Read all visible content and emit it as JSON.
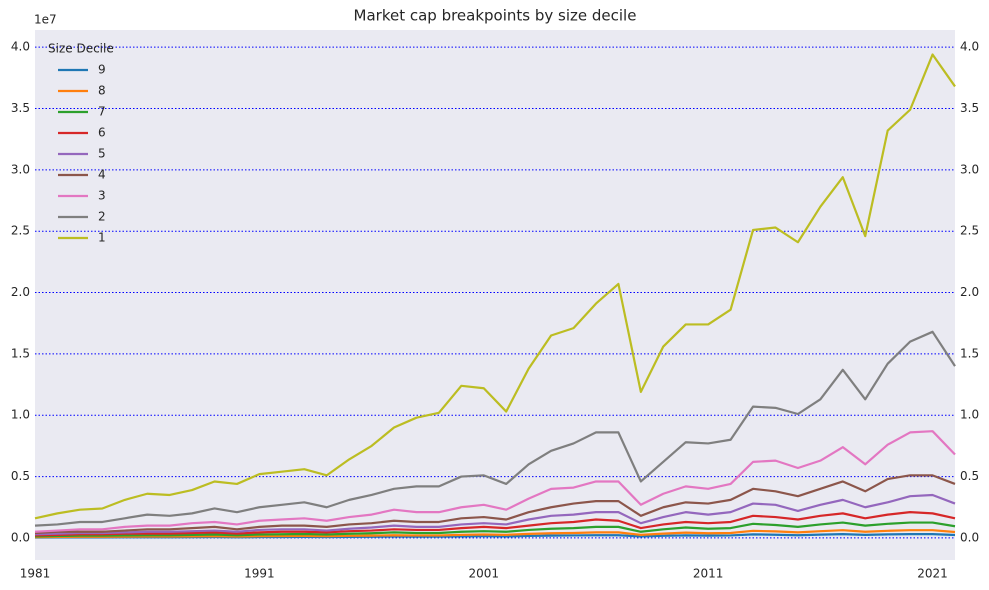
{
  "chart_data": {
    "type": "line",
    "title": "Market cap breakpoints by size decile",
    "offset_label": "1e7",
    "legend_title": "Size Decile",
    "legend_loc": "upper left",
    "grid": true,
    "xlim": [
      1981,
      2022
    ],
    "xticks": [
      1981,
      1991,
      2001,
      2011,
      2021
    ],
    "ylim": [
      -0.18,
      4.14
    ],
    "yticks": [
      {
        "value": 0,
        "label": "0.0"
      },
      {
        "value": 0.5,
        "label": "0.5"
      },
      {
        "value": 1,
        "label": "1.0"
      },
      {
        "value": 1.5,
        "label": "1.5"
      },
      {
        "value": 2,
        "label": "2.0"
      },
      {
        "value": 2.5,
        "label": "2.5"
      },
      {
        "value": 3,
        "label": "3.0"
      },
      {
        "value": 3.5,
        "label": "3.5"
      },
      {
        "value": 4,
        "label": "4.0"
      }
    ],
    "x": [
      1981,
      1982,
      1983,
      1984,
      1985,
      1986,
      1987,
      1988,
      1989,
      1990,
      1991,
      1992,
      1993,
      1994,
      1995,
      1996,
      1997,
      1998,
      1999,
      2000,
      2001,
      2002,
      2003,
      2004,
      2005,
      2006,
      2007,
      2008,
      2009,
      2010,
      2011,
      2012,
      2013,
      2014,
      2015,
      2016,
      2017,
      2018,
      2019,
      2020,
      2021,
      2022
    ],
    "series": [
      {
        "name": "9",
        "color": "#1f77b4",
        "values": [
          0.003,
          0.004,
          0.004,
          0.004,
          0.005,
          0.005,
          0.005,
          0.006,
          0.007,
          0.005,
          0.007,
          0.007,
          0.008,
          0.007,
          0.008,
          0.009,
          0.011,
          0.01,
          0.01,
          0.012,
          0.014,
          0.012,
          0.016,
          0.019,
          0.02,
          0.022,
          0.022,
          0.012,
          0.017,
          0.021,
          0.019,
          0.02,
          0.029,
          0.026,
          0.022,
          0.027,
          0.031,
          0.025,
          0.029,
          0.031,
          0.031,
          0.024
        ]
      },
      {
        "name": "8",
        "color": "#ff7f0e",
        "values": [
          0.006,
          0.008,
          0.009,
          0.009,
          0.01,
          0.011,
          0.011,
          0.012,
          0.014,
          0.011,
          0.014,
          0.015,
          0.016,
          0.014,
          0.017,
          0.019,
          0.022,
          0.02,
          0.02,
          0.025,
          0.028,
          0.025,
          0.033,
          0.038,
          0.04,
          0.045,
          0.045,
          0.025,
          0.035,
          0.043,
          0.038,
          0.04,
          0.058,
          0.053,
          0.045,
          0.055,
          0.063,
          0.05,
          0.058,
          0.063,
          0.063,
          0.048
        ]
      },
      {
        "name": "7",
        "color": "#2ca02c",
        "values": [
          0.012,
          0.015,
          0.018,
          0.018,
          0.02,
          0.022,
          0.022,
          0.025,
          0.028,
          0.022,
          0.028,
          0.03,
          0.032,
          0.028,
          0.034,
          0.038,
          0.045,
          0.04,
          0.04,
          0.05,
          0.055,
          0.05,
          0.065,
          0.075,
          0.08,
          0.09,
          0.09,
          0.05,
          0.07,
          0.085,
          0.075,
          0.08,
          0.115,
          0.105,
          0.09,
          0.11,
          0.125,
          0.1,
          0.115,
          0.125,
          0.125,
          0.095
        ]
      },
      {
        "name": "6",
        "color": "#d62728",
        "values": [
          0.02,
          0.025,
          0.03,
          0.03,
          0.035,
          0.035,
          0.035,
          0.04,
          0.045,
          0.035,
          0.045,
          0.05,
          0.05,
          0.045,
          0.055,
          0.06,
          0.07,
          0.065,
          0.065,
          0.08,
          0.09,
          0.08,
          0.1,
          0.12,
          0.13,
          0.15,
          0.14,
          0.08,
          0.11,
          0.13,
          0.12,
          0.13,
          0.18,
          0.17,
          0.15,
          0.18,
          0.2,
          0.16,
          0.19,
          0.21,
          0.2,
          0.16
        ]
      },
      {
        "name": "5",
        "color": "#9467bd",
        "values": [
          0.03,
          0.035,
          0.04,
          0.04,
          0.045,
          0.05,
          0.05,
          0.055,
          0.06,
          0.05,
          0.065,
          0.07,
          0.07,
          0.06,
          0.075,
          0.085,
          0.1,
          0.09,
          0.09,
          0.11,
          0.12,
          0.11,
          0.15,
          0.18,
          0.19,
          0.21,
          0.21,
          0.12,
          0.17,
          0.21,
          0.19,
          0.21,
          0.28,
          0.27,
          0.22,
          0.27,
          0.31,
          0.25,
          0.29,
          0.34,
          0.35,
          0.28
        ]
      },
      {
        "name": "4",
        "color": "#8c564b",
        "values": [
          0.04,
          0.05,
          0.05,
          0.05,
          0.06,
          0.07,
          0.07,
          0.08,
          0.09,
          0.07,
          0.09,
          0.1,
          0.1,
          0.09,
          0.11,
          0.12,
          0.14,
          0.13,
          0.13,
          0.16,
          0.17,
          0.15,
          0.21,
          0.25,
          0.28,
          0.3,
          0.3,
          0.18,
          0.25,
          0.29,
          0.28,
          0.31,
          0.4,
          0.38,
          0.34,
          0.4,
          0.46,
          0.38,
          0.48,
          0.51,
          0.51,
          0.44
        ]
      },
      {
        "name": "3",
        "color": "#e377c2",
        "values": [
          0.05,
          0.06,
          0.07,
          0.07,
          0.09,
          0.1,
          0.1,
          0.12,
          0.13,
          0.11,
          0.14,
          0.15,
          0.16,
          0.14,
          0.17,
          0.19,
          0.23,
          0.21,
          0.21,
          0.25,
          0.27,
          0.23,
          0.32,
          0.4,
          0.41,
          0.46,
          0.46,
          0.27,
          0.36,
          0.42,
          0.4,
          0.44,
          0.62,
          0.63,
          0.57,
          0.63,
          0.74,
          0.6,
          0.76,
          0.86,
          0.87,
          0.68
        ]
      },
      {
        "name": "2",
        "color": "#7f7f7f",
        "values": [
          0.1,
          0.11,
          0.13,
          0.13,
          0.16,
          0.19,
          0.18,
          0.2,
          0.24,
          0.21,
          0.25,
          0.27,
          0.29,
          0.25,
          0.31,
          0.35,
          0.4,
          0.42,
          0.42,
          0.5,
          0.51,
          0.44,
          0.6,
          0.71,
          0.77,
          0.86,
          0.86,
          0.46,
          0.62,
          0.78,
          0.77,
          0.8,
          1.07,
          1.06,
          1.01,
          1.13,
          1.37,
          1.13,
          1.42,
          1.6,
          1.68,
          1.4
        ]
      },
      {
        "name": "1",
        "color": "#bcbd22",
        "values": [
          0.16,
          0.2,
          0.23,
          0.24,
          0.31,
          0.36,
          0.35,
          0.39,
          0.46,
          0.44,
          0.52,
          0.54,
          0.56,
          0.51,
          0.64,
          0.75,
          0.9,
          0.98,
          1.02,
          1.24,
          1.22,
          1.03,
          1.38,
          1.65,
          1.71,
          1.91,
          2.07,
          1.19,
          1.56,
          1.74,
          1.74,
          1.86,
          2.51,
          2.53,
          2.41,
          2.7,
          2.94,
          2.46,
          3.32,
          3.49,
          3.94,
          3.68
        ]
      }
    ]
  }
}
